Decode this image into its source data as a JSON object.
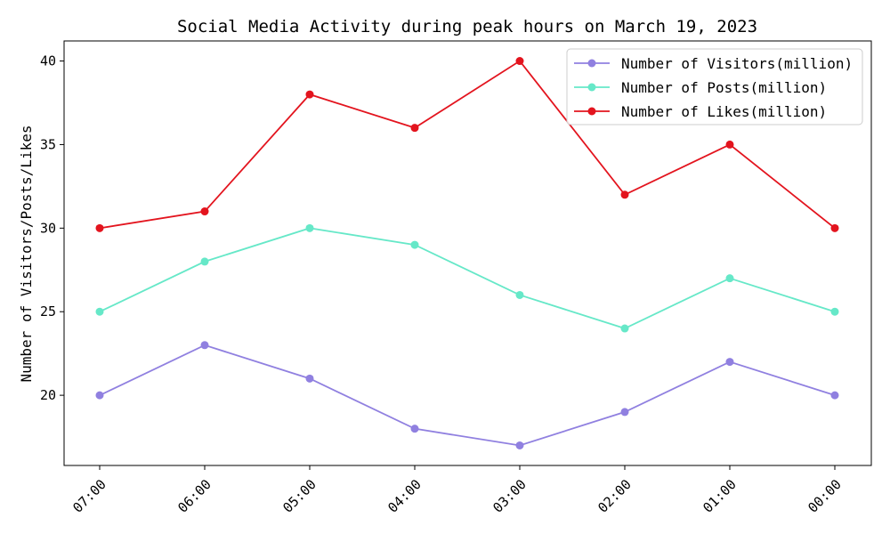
{
  "chart_data": {
    "type": "line",
    "title": "Social Media Activity during peak hours on March 19, 2023",
    "xlabel": "",
    "ylabel": "Number of Visitors/Posts/Likes",
    "categories": [
      "07:00",
      "06:00",
      "05:00",
      "04:00",
      "03:00",
      "02:00",
      "01:00",
      "00:00"
    ],
    "ylim": [
      15.8,
      41.2
    ],
    "yticks": [
      20,
      25,
      30,
      35,
      40
    ],
    "grid": false,
    "legend_position": "top-right",
    "series": [
      {
        "name": "Number of Visitors(million)",
        "color": "#9080e0",
        "values": [
          20,
          23,
          21,
          18,
          17,
          19,
          22,
          20
        ]
      },
      {
        "name": "Number of Posts(million)",
        "color": "#66e8c8",
        "values": [
          25,
          28,
          30,
          29,
          26,
          24,
          27,
          25
        ]
      },
      {
        "name": "Number of Likes(million)",
        "color": "#e3141e",
        "values": [
          30,
          31,
          38,
          36,
          40,
          32,
          35,
          30
        ]
      }
    ]
  }
}
